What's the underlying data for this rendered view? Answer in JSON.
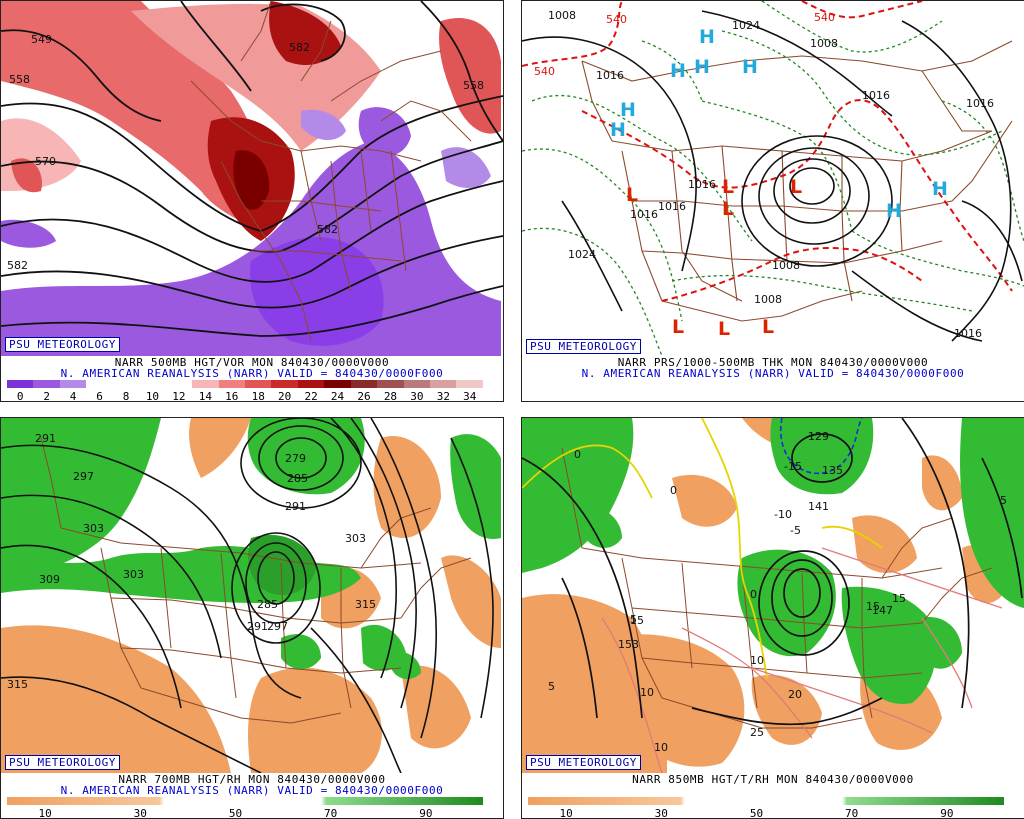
{
  "panels": [
    {
      "badge": "PSU METEOROLOGY",
      "caption1": "NARR 500MB HGT/VOR MON 840430/0000V000",
      "caption2": "N. AMERICAN REANALYSIS (NARR) VALID = 840430/0000F000",
      "scale_ticks": [
        "0",
        "2",
        "4",
        "6",
        "8",
        "10",
        "12",
        "14",
        "16",
        "18",
        "20",
        "22",
        "24",
        "26",
        "28",
        "30",
        "32",
        "34"
      ],
      "scale_colors": [
        "#7a33d6",
        "#9b59e0",
        "#b48ae8",
        "#ffffff",
        "#ffffff",
        "#ffffff",
        "#ffffff",
        "#f7b5b5",
        "#f08080",
        "#e05555",
        "#cc2a2a",
        "#aa1111",
        "#7a0000",
        "#8a2a2a",
        "#a05050",
        "#b87a7a",
        "#d9a0a0",
        "#f0c8c8"
      ],
      "labels": [
        "549",
        "558",
        "570",
        "582",
        "582",
        "558",
        "582"
      ]
    },
    {
      "badge": "PSU METEOROLOGY",
      "caption1": "NARR PRS/1000-500MB THK MON 840430/0000V000",
      "caption2": "N. AMERICAN REANALYSIS (NARR) VALID = 840430/0000F000",
      "labels": [
        "1008",
        "1024",
        "1008",
        "1016",
        "1016",
        "1016",
        "1024",
        "1008",
        "1008",
        "1016",
        "1016",
        "1016",
        "1016",
        "540",
        "540",
        "540"
      ],
      "highs": [
        "H",
        "H",
        "H",
        "H",
        "H",
        "H",
        "H",
        "H"
      ],
      "lows": [
        "L",
        "L",
        "L",
        "L",
        "L",
        "L",
        "L"
      ]
    },
    {
      "badge": "PSU METEOROLOGY",
      "caption1": "NARR 700MB HGT/RH MON 840430/0000V000",
      "caption2": "N. AMERICAN REANALYSIS (NARR) VALID = 840430/0000F000",
      "scale_ticks": [
        "10",
        "30",
        "50",
        "70",
        "90"
      ],
      "labels": [
        "291",
        "297",
        "303",
        "303",
        "309",
        "279",
        "285",
        "291",
        "303",
        "315",
        "315",
        "285",
        "291",
        "297"
      ]
    },
    {
      "badge": "PSU METEOROLOGY",
      "caption1": "NARR 850MB HGT/T/RH MON 840430/0000V000",
      "caption2": "",
      "scale_ticks": [
        "10",
        "30",
        "50",
        "70",
        "90"
      ],
      "labels": [
        "129",
        "135",
        "141",
        "153",
        "147",
        "-15",
        "-10",
        "-5",
        "0",
        "0",
        "0",
        "5",
        "5",
        "5",
        "10",
        "10",
        "10",
        "15",
        "15",
        "15",
        "20",
        "25"
      ]
    }
  ],
  "colors": {
    "dry": "#f0a060",
    "moist": "#33bb33",
    "vor_pos": "#d83a3a",
    "vor_neg": "#8844dd",
    "border": "#8b4a2b",
    "high": "#22aadd",
    "low": "#dd2200"
  }
}
